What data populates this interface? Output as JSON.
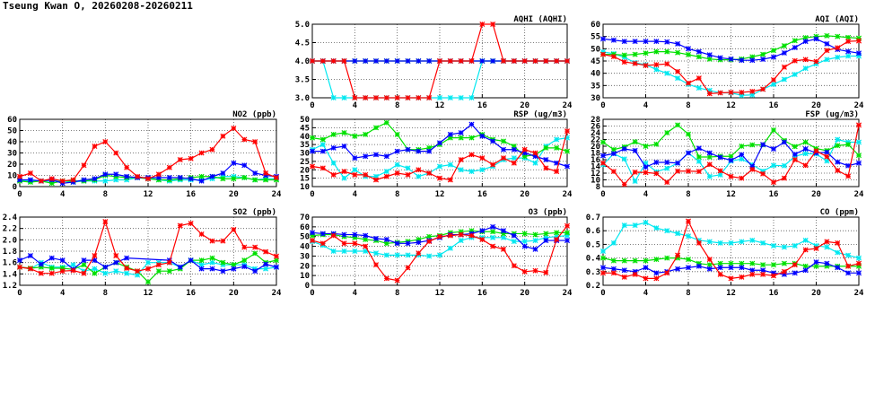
{
  "title": "Tseung Kwan O, 20260208-20260211",
  "colors": {
    "red": "#ff0000",
    "green": "#00e000",
    "blue": "#0000ff",
    "cyan": "#00e8f0"
  },
  "chart_data": [
    {
      "type": "line",
      "title": "AQHI (AQHI)",
      "ylim": [
        3,
        5
      ],
      "yticks": [
        "3.0",
        "3.5",
        "4.0",
        "4.5",
        "5.0"
      ],
      "xticks": [
        "0",
        "4",
        "8",
        "12",
        "16",
        "20",
        "24"
      ],
      "xlim": [
        0,
        24
      ],
      "grid": true,
      "series": [
        {
          "name": "cyan",
          "values": [
            4,
            4,
            3,
            3,
            3,
            3,
            3,
            3,
            3,
            3,
            3,
            3,
            3,
            3,
            3,
            3,
            4,
            4,
            4,
            4,
            4,
            4,
            4,
            4,
            4
          ]
        },
        {
          "name": "green",
          "values": [
            4,
            4,
            4,
            4,
            4,
            4,
            4,
            4,
            4,
            4,
            4,
            4,
            4,
            4,
            4,
            4,
            4,
            4,
            4,
            4,
            4,
            4,
            4,
            4,
            4
          ]
        },
        {
          "name": "blue",
          "values": [
            4,
            4,
            4,
            4,
            4,
            4,
            4,
            4,
            4,
            4,
            4,
            4,
            4,
            4,
            4,
            4,
            4,
            4,
            4,
            4,
            4,
            4,
            4,
            4,
            4
          ]
        },
        {
          "name": "red",
          "values": [
            4,
            4,
            4,
            4,
            3,
            3,
            3,
            3,
            3,
            3,
            3,
            3,
            4,
            4,
            4,
            4,
            5,
            5,
            4,
            4,
            4,
            4,
            4,
            4,
            4
          ]
        }
      ]
    },
    {
      "type": "line",
      "title": "AQI (AQI)",
      "ylim": [
        30,
        60
      ],
      "yticks": [
        "30",
        "35",
        "40",
        "45",
        "50",
        "55",
        "60"
      ],
      "xticks": [
        "0",
        "4",
        "8",
        "12",
        "16",
        "20",
        "24"
      ],
      "xlim": [
        0,
        24
      ],
      "grid": true,
      "series": [
        {
          "name": "cyan",
          "values": [
            48.7,
            48,
            46.5,
            44.3,
            43.5,
            41.5,
            40,
            38,
            35.5,
            34,
            33,
            32,
            32,
            31,
            31.2,
            33.5,
            35.5,
            37.5,
            39.5,
            42,
            43.8,
            45.6,
            46.5,
            47,
            47
          ]
        },
        {
          "name": "green",
          "values": [
            47.7,
            47.7,
            47.4,
            47.7,
            48.2,
            48.8,
            48.8,
            48.4,
            47.6,
            46.7,
            45.8,
            45.5,
            45.5,
            45.8,
            46.7,
            47.7,
            49.3,
            51.2,
            53.3,
            54.5,
            55,
            55.3,
            55,
            54.6,
            54.3
          ]
        },
        {
          "name": "blue",
          "values": [
            54,
            53.5,
            53,
            53,
            53,
            53,
            52.8,
            52,
            50,
            48.8,
            47.5,
            46.3,
            45.8,
            45.3,
            45.3,
            45.7,
            46.6,
            48.3,
            50.5,
            53,
            54,
            52,
            49.7,
            48.9,
            48.2
          ]
        },
        {
          "name": "red",
          "values": [
            47.7,
            46.8,
            44.6,
            44,
            43.2,
            43.5,
            43.8,
            40.7,
            36,
            38,
            31.7,
            32,
            32.2,
            32.2,
            32.6,
            33.5,
            37.3,
            42.5,
            45.1,
            45.6,
            44.8,
            49.3,
            50.4,
            53,
            53.2
          ]
        }
      ]
    },
    {
      "type": "line",
      "title": "NO2 (ppb)",
      "ylim": [
        0,
        60
      ],
      "yticks": [
        "0",
        "10",
        "20",
        "30",
        "40",
        "50",
        "60"
      ],
      "xticks": [
        "0",
        "4",
        "8",
        "12",
        "16",
        "20",
        "24"
      ],
      "xlim": [
        0,
        24
      ],
      "grid": true,
      "series": [
        {
          "name": "cyan",
          "values": [
            6,
            5,
            5,
            5,
            5,
            4,
            5,
            5,
            5,
            6,
            6,
            8,
            8,
            6,
            5,
            6,
            6,
            6,
            7,
            9,
            9,
            8,
            6,
            7,
            7
          ]
        },
        {
          "name": "green",
          "values": [
            5,
            4,
            5,
            3,
            5,
            5,
            5,
            6,
            10,
            9,
            8,
            8,
            7,
            6,
            6,
            7,
            8,
            9,
            9,
            7,
            7,
            8,
            6,
            6,
            6
          ]
        },
        {
          "name": "blue",
          "values": [
            6,
            6,
            5,
            6,
            3,
            4,
            6,
            7,
            11,
            11,
            9,
            8,
            8,
            8,
            8,
            8,
            7,
            5,
            9,
            12,
            21,
            19,
            12,
            10,
            9
          ]
        },
        {
          "name": "red",
          "values": [
            9,
            12,
            5,
            7,
            5,
            6,
            19,
            36,
            40,
            30,
            17,
            9,
            7,
            11,
            17,
            24,
            25,
            30,
            33,
            45,
            52,
            42,
            40,
            12,
            8
          ]
        }
      ]
    },
    {
      "type": "line",
      "title": "RSP (ug/m3)",
      "ylim": [
        10,
        50
      ],
      "yticks": [
        "10",
        "15",
        "20",
        "25",
        "30",
        "35",
        "40",
        "45",
        "50"
      ],
      "xticks": [
        "0",
        "4",
        "8",
        "12",
        "16",
        "20",
        "24"
      ],
      "xlim": [
        0,
        24
      ],
      "grid": true,
      "series": [
        {
          "name": "cyan",
          "values": [
            32,
            35,
            24,
            15,
            20,
            16,
            16,
            19,
            23,
            21,
            16,
            18,
            22,
            23,
            20,
            19,
            20,
            22,
            26,
            27,
            27,
            24,
            34,
            38,
            39
          ]
        },
        {
          "name": "green",
          "values": [
            39,
            38,
            41,
            42,
            40,
            41,
            45,
            48,
            41,
            32,
            32,
            33,
            35,
            39,
            39,
            39,
            41,
            38,
            37,
            34,
            28,
            29,
            33,
            33,
            31
          ]
        },
        {
          "name": "blue",
          "values": [
            31,
            31,
            33,
            34,
            27,
            28,
            29,
            28,
            31,
            32,
            31,
            31,
            36,
            41,
            42,
            47,
            40,
            37,
            32,
            32,
            30,
            28,
            26,
            24,
            22
          ]
        },
        {
          "name": "red",
          "values": [
            22,
            21,
            17,
            19,
            17,
            17,
            14,
            16,
            18,
            17,
            20,
            18,
            15,
            14,
            26,
            29,
            27,
            23,
            27,
            24,
            32,
            30,
            21,
            19,
            43
          ]
        }
      ]
    },
    {
      "type": "line",
      "title": "FSP (ug/m3)",
      "ylim": [
        8,
        28
      ],
      "yticks": [
        "8",
        "10",
        "12",
        "14",
        "16",
        "18",
        "20",
        "22",
        "24",
        "26",
        "28"
      ],
      "xticks": [
        "0",
        "4",
        "8",
        "12",
        "16",
        "20",
        "24"
      ],
      "xlim": [
        0,
        24
      ],
      "grid": true,
      "series": [
        {
          "name": "cyan",
          "values": [
            14.5,
            17.8,
            16.2,
            9.6,
            15,
            12.4,
            13.4,
            15,
            18,
            15.5,
            11,
            11.5,
            15.6,
            16.2,
            14.5,
            12.6,
            14.3,
            14.2,
            17,
            17.8,
            17.7,
            15.6,
            22,
            21.2,
            21.2
          ]
        },
        {
          "name": "green",
          "values": [
            21.2,
            19,
            19.8,
            21.3,
            20,
            20.6,
            24,
            26.3,
            23.6,
            16.8,
            16.8,
            17,
            17,
            20,
            20.4,
            20.4,
            24.8,
            21.7,
            19.9,
            21.2,
            19.3,
            18.7,
            20.2,
            20.5,
            17.3
          ]
        },
        {
          "name": "blue",
          "values": [
            17.2,
            17.8,
            19.2,
            18.7,
            13.8,
            15.2,
            15.2,
            15,
            18,
            19.4,
            18,
            16.7,
            15.8,
            17.5,
            14,
            20.5,
            19.2,
            21.2,
            17.6,
            19.2,
            18,
            18.2,
            15.3,
            14.2,
            15
          ]
        },
        {
          "name": "red",
          "values": [
            15,
            12.5,
            8.7,
            12.3,
            12.2,
            11.9,
            9.3,
            12.6,
            12.6,
            12.5,
            14.6,
            12.7,
            11,
            10.5,
            13.1,
            11.8,
            9.3,
            10.5,
            16,
            14.3,
            18.6,
            16.9,
            12.8,
            11.1,
            26.3
          ]
        }
      ]
    },
    {
      "type": "line",
      "title": "SO2 (ppb)",
      "ylim": [
        1.2,
        2.4
      ],
      "yticks": [
        "1.2",
        "1.4",
        "1.6",
        "1.8",
        "2.0",
        "2.2",
        "2.4"
      ],
      "xticks": [
        "0",
        "4",
        "8",
        "12",
        "16",
        "20",
        "24"
      ],
      "xlim": [
        0,
        24
      ],
      "grid": true,
      "series": [
        {
          "name": "cyan",
          "values": [
            1.52,
            1.49,
            1.6,
            1.52,
            1.52,
            1.56,
            1.45,
            1.49,
            1.41,
            1.45,
            1.41,
            1.38,
            1.6,
            1.6,
            1.6,
            1.52,
            1.64,
            1.56,
            1.6,
            1.56,
            1.56,
            1.56,
            1.49,
            1.49,
            1.52
          ]
        },
        {
          "name": "green",
          "values": [
            1.52,
            1.5,
            1.52,
            1.5,
            1.5,
            1.48,
            1.56,
            1.41,
            1.52,
            1.6,
            1.52,
            1.45,
            1.26,
            1.45,
            1.45,
            1.49,
            1.64,
            1.64,
            1.68,
            1.6,
            1.56,
            1.64,
            1.76,
            1.6,
            1.64
          ]
        },
        {
          "name": "blue",
          "values": [
            1.64,
            1.72,
            1.57,
            1.68,
            1.64,
            1.48,
            1.64,
            1.64,
            1.52,
            1.6,
            1.68,
            null,
            null,
            null,
            1.64,
            1.52,
            1.64,
            1.49,
            1.49,
            1.45,
            1.49,
            1.53,
            1.45,
            1.57,
            1.52
          ]
        },
        {
          "name": "red",
          "values": [
            1.52,
            1.49,
            1.41,
            1.41,
            1.45,
            1.46,
            1.41,
            1.72,
            2.32,
            1.72,
            1.5,
            1.45,
            1.49,
            1.56,
            1.6,
            2.25,
            2.29,
            2.1,
            1.98,
            1.98,
            2.18,
            1.87,
            1.87,
            1.79,
            1.71
          ]
        }
      ]
    },
    {
      "type": "line",
      "title": "O3 (ppb)",
      "ylim": [
        0,
        70
      ],
      "yticks": [
        "0",
        "10",
        "20",
        "30",
        "40",
        "50",
        "60",
        "70"
      ],
      "xticks": [
        "0",
        "4",
        "8",
        "12",
        "16",
        "20",
        "24"
      ],
      "xlim": [
        0,
        24
      ],
      "grid": true,
      "series": [
        {
          "name": "cyan",
          "values": [
            45,
            41,
            35,
            35,
            35,
            35,
            33,
            31,
            31,
            31,
            31,
            30,
            31,
            38,
            46,
            49,
            49,
            49,
            49,
            45,
            45,
            46,
            49,
            50,
            51
          ]
        },
        {
          "name": "green",
          "values": [
            51,
            52,
            52,
            50,
            49,
            47,
            46,
            43,
            44,
            45,
            47,
            50,
            51,
            54,
            55,
            56,
            55,
            55,
            53,
            53,
            53,
            52,
            53,
            54,
            54
          ]
        },
        {
          "name": "blue",
          "values": [
            54,
            53,
            53,
            52,
            52,
            51,
            48,
            47,
            43,
            43,
            44,
            46,
            49,
            52,
            52,
            53,
            56,
            60,
            56,
            51,
            40,
            37,
            46,
            46,
            46
          ]
        },
        {
          "name": "red",
          "values": [
            46,
            43,
            51,
            43,
            43,
            40,
            21,
            7,
            5,
            18,
            33,
            45,
            50,
            51,
            52,
            51,
            47,
            40,
            37,
            20,
            14,
            15,
            13,
            47,
            61
          ]
        }
      ]
    },
    {
      "type": "line",
      "title": "CO (ppm)",
      "ylim": [
        0.2,
        0.7
      ],
      "yticks": [
        "0.2",
        "0.3",
        "0.4",
        "0.5",
        "0.6",
        "0.7"
      ],
      "xticks": [
        "0",
        "4",
        "8",
        "12",
        "16",
        "20",
        "24"
      ],
      "xlim": [
        0,
        24
      ],
      "grid": true,
      "series": [
        {
          "name": "cyan",
          "values": [
            0.45,
            0.51,
            0.64,
            0.64,
            0.66,
            0.62,
            0.6,
            0.58,
            0.56,
            0.53,
            0.52,
            0.51,
            0.51,
            0.52,
            0.53,
            0.51,
            0.49,
            0.48,
            0.49,
            0.53,
            0.49,
            0.48,
            0.44,
            0.42,
            0.4
          ]
        },
        {
          "name": "green",
          "values": [
            0.4,
            0.38,
            0.38,
            0.38,
            0.38,
            0.39,
            0.4,
            0.4,
            0.39,
            0.36,
            0.35,
            0.36,
            0.36,
            0.36,
            0.36,
            0.35,
            0.35,
            0.36,
            0.36,
            0.34,
            0.34,
            0.34,
            0.34,
            0.34,
            0.34
          ]
        },
        {
          "name": "blue",
          "values": [
            0.33,
            0.32,
            0.31,
            0.3,
            0.33,
            0.29,
            0.3,
            0.32,
            0.33,
            0.34,
            0.32,
            0.33,
            0.33,
            0.33,
            0.31,
            0.31,
            0.29,
            0.28,
            0.29,
            0.31,
            0.37,
            0.36,
            0.33,
            0.29,
            0.29
          ]
        },
        {
          "name": "red",
          "values": [
            0.29,
            0.29,
            0.26,
            0.28,
            0.25,
            0.25,
            0.29,
            0.42,
            0.67,
            0.51,
            0.39,
            0.28,
            0.25,
            0.26,
            0.28,
            0.28,
            0.27,
            0.3,
            0.35,
            0.46,
            0.47,
            0.52,
            0.51,
            0.34,
            0.36
          ]
        }
      ]
    }
  ]
}
